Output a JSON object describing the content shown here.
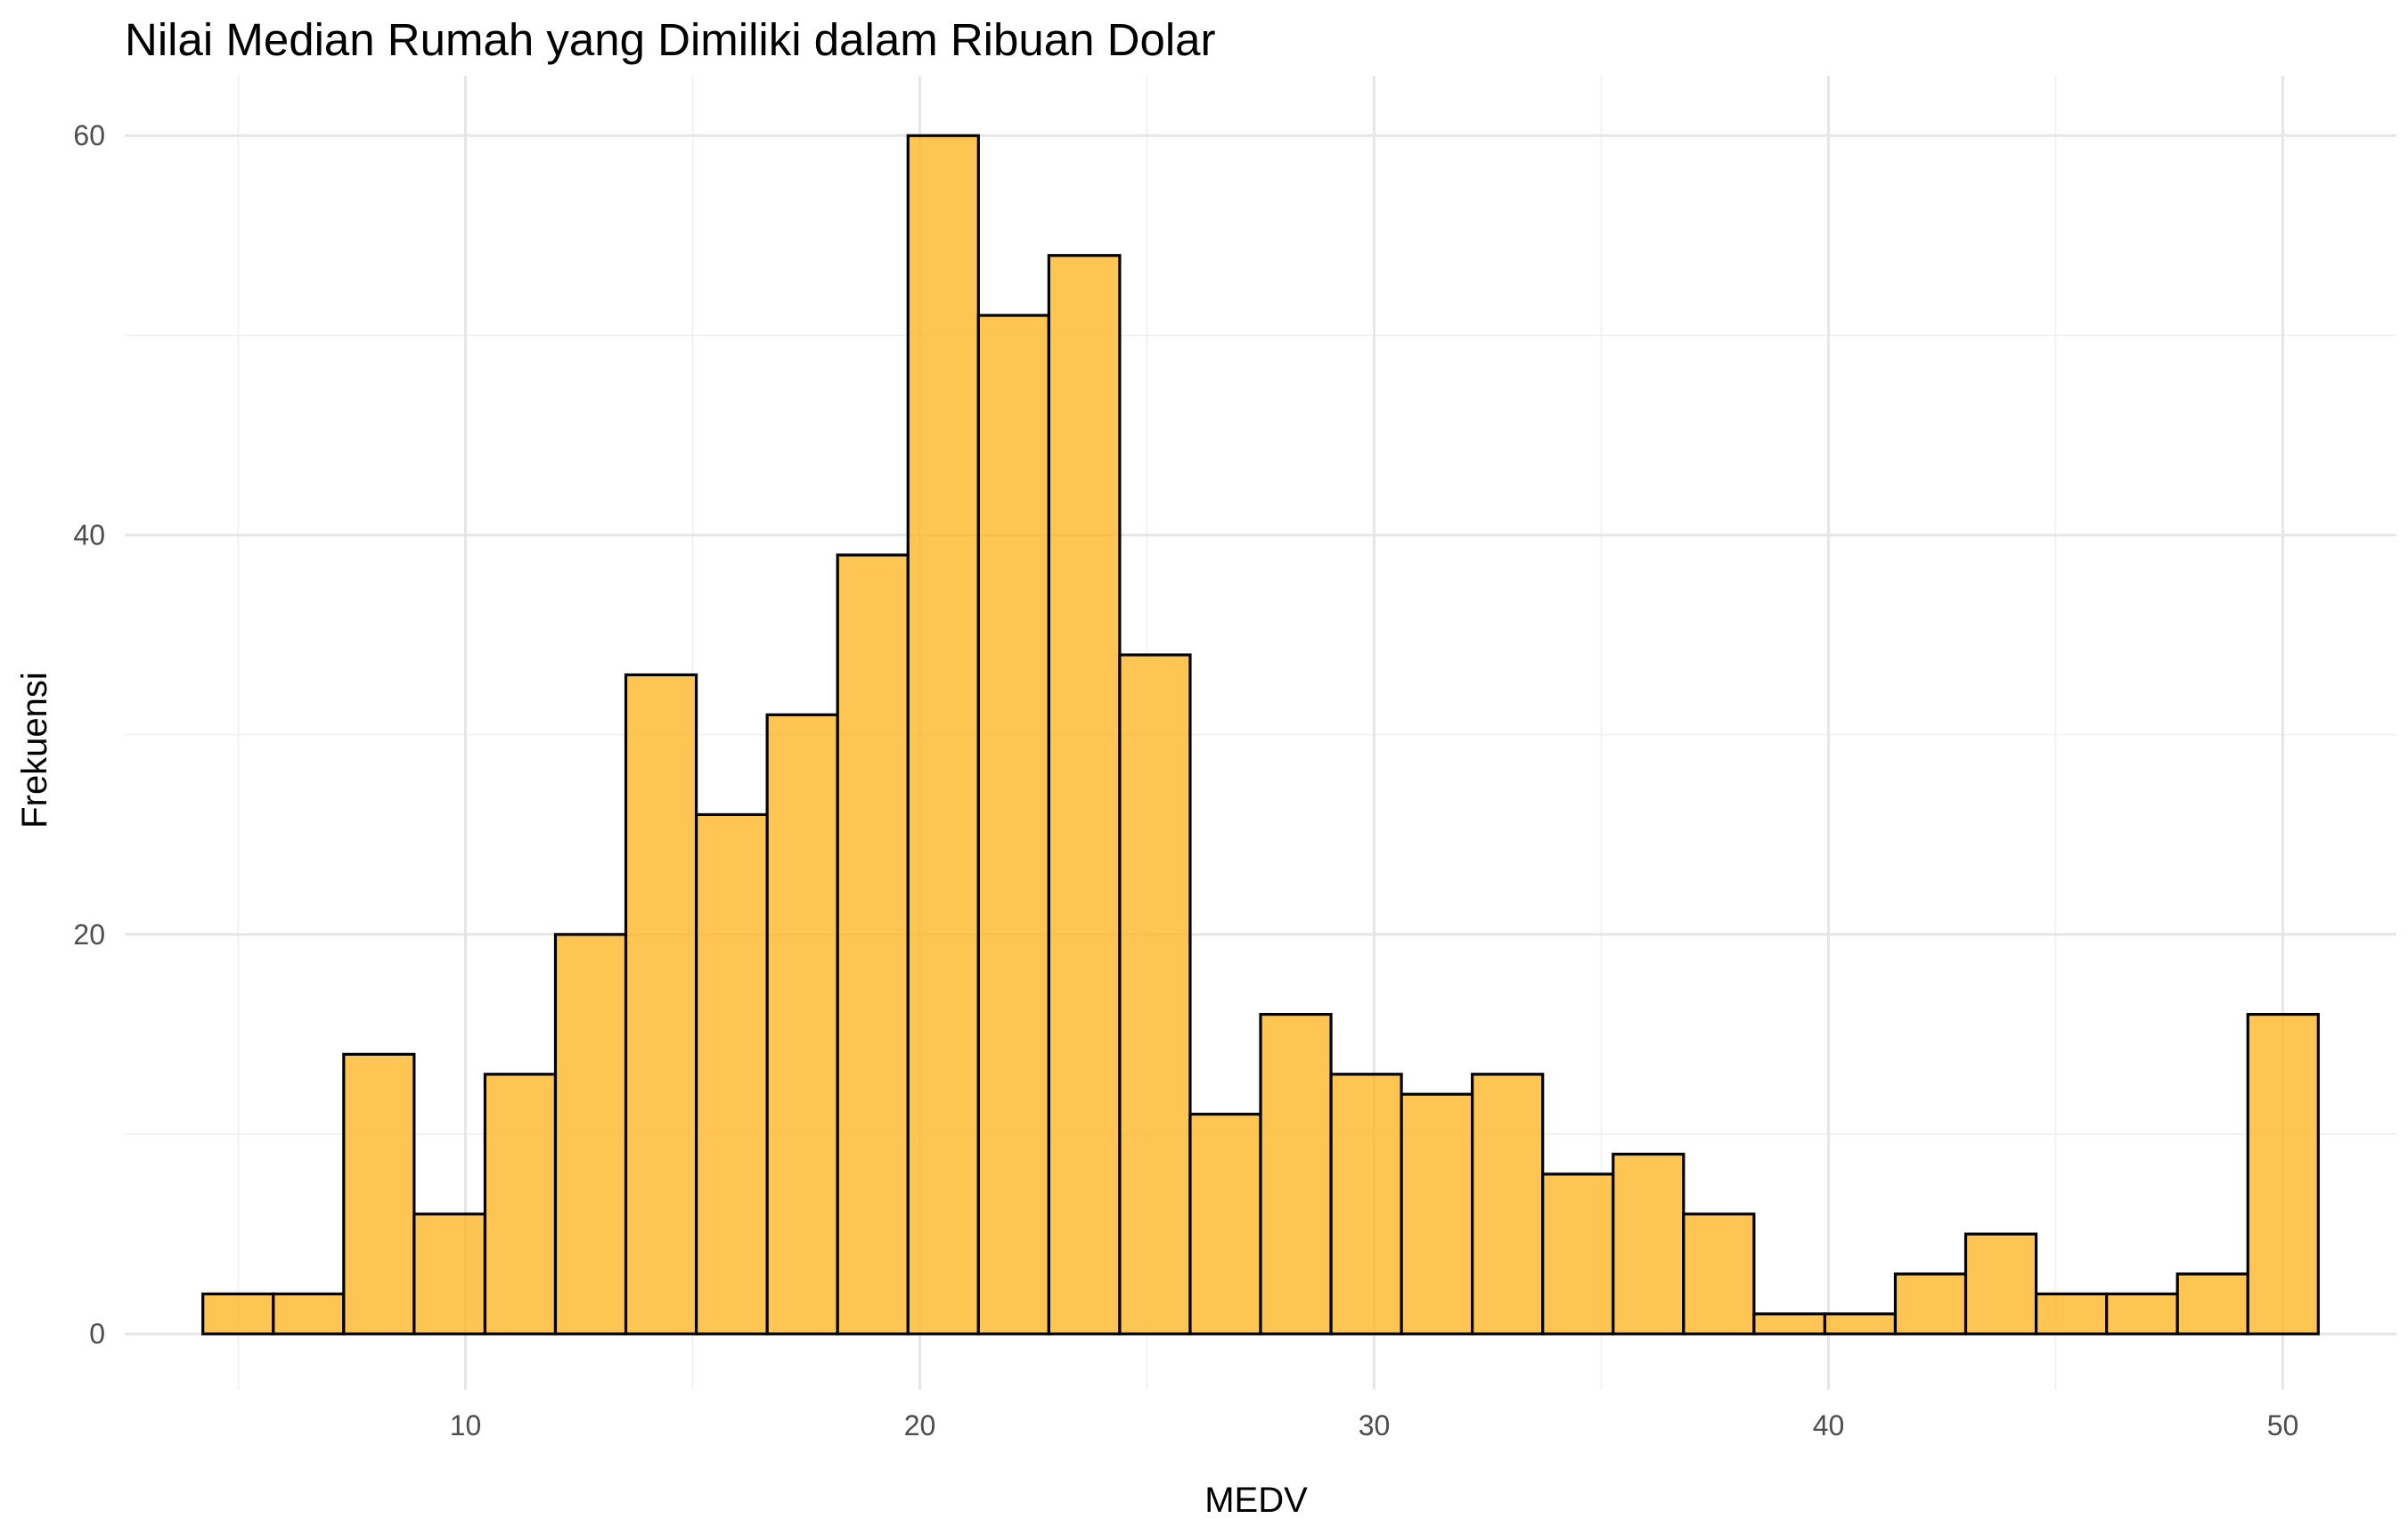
{
  "chart_data": {
    "type": "bar",
    "title": "Nilai Median Rumah yang Dimiliki dalam Ribuan Dolar",
    "xlabel": "MEDV",
    "ylabel": "Frekuensi",
    "xlim": [
      2.5,
      52.5
    ],
    "ylim": [
      -2.8,
      63
    ],
    "x_ticks": [
      10,
      20,
      30,
      40,
      50
    ],
    "x_tick_labels": [
      "10",
      "20",
      "30",
      "40",
      "50"
    ],
    "y_ticks": [
      0,
      20,
      40,
      60
    ],
    "y_tick_labels": [
      "0",
      "20",
      "40",
      "60"
    ],
    "grid": true,
    "bin_width": 1.552,
    "bins": [
      {
        "x_start": 4.22,
        "x_end": 5.77,
        "count": 2
      },
      {
        "x_start": 5.77,
        "x_end": 7.32,
        "count": 2
      },
      {
        "x_start": 7.32,
        "x_end": 8.87,
        "count": 14
      },
      {
        "x_start": 8.87,
        "x_end": 10.43,
        "count": 6
      },
      {
        "x_start": 10.43,
        "x_end": 11.98,
        "count": 13
      },
      {
        "x_start": 11.98,
        "x_end": 13.53,
        "count": 20
      },
      {
        "x_start": 13.53,
        "x_end": 15.08,
        "count": 33
      },
      {
        "x_start": 15.08,
        "x_end": 16.64,
        "count": 26
      },
      {
        "x_start": 16.64,
        "x_end": 18.19,
        "count": 31
      },
      {
        "x_start": 18.19,
        "x_end": 19.74,
        "count": 39
      },
      {
        "x_start": 19.74,
        "x_end": 21.29,
        "count": 60
      },
      {
        "x_start": 21.29,
        "x_end": 22.84,
        "count": 51
      },
      {
        "x_start": 22.84,
        "x_end": 24.4,
        "count": 54
      },
      {
        "x_start": 24.4,
        "x_end": 25.95,
        "count": 34
      },
      {
        "x_start": 25.95,
        "x_end": 27.5,
        "count": 11
      },
      {
        "x_start": 27.5,
        "x_end": 29.05,
        "count": 16
      },
      {
        "x_start": 29.05,
        "x_end": 30.6,
        "count": 13
      },
      {
        "x_start": 30.6,
        "x_end": 32.16,
        "count": 12
      },
      {
        "x_start": 32.16,
        "x_end": 33.71,
        "count": 13
      },
      {
        "x_start": 33.71,
        "x_end": 35.26,
        "count": 8
      },
      {
        "x_start": 35.26,
        "x_end": 36.81,
        "count": 9
      },
      {
        "x_start": 36.81,
        "x_end": 38.36,
        "count": 6
      },
      {
        "x_start": 38.36,
        "x_end": 39.92,
        "count": 1
      },
      {
        "x_start": 39.92,
        "x_end": 41.47,
        "count": 1
      },
      {
        "x_start": 41.47,
        "x_end": 43.02,
        "count": 3
      },
      {
        "x_start": 43.02,
        "x_end": 44.57,
        "count": 5
      },
      {
        "x_start": 44.57,
        "x_end": 46.12,
        "count": 2
      },
      {
        "x_start": 46.12,
        "x_end": 47.68,
        "count": 2
      },
      {
        "x_start": 47.68,
        "x_end": 49.23,
        "count": 3
      },
      {
        "x_start": 49.23,
        "x_end": 50.78,
        "count": 16
      }
    ],
    "colors": {
      "bar_fill": "#FFB627",
      "bar_fill_opacity": 0.8,
      "bar_stroke": "#000000",
      "background": "#FFFFFF",
      "grid": "#E6E6E6",
      "tick_text": "#4D4D4D"
    }
  }
}
